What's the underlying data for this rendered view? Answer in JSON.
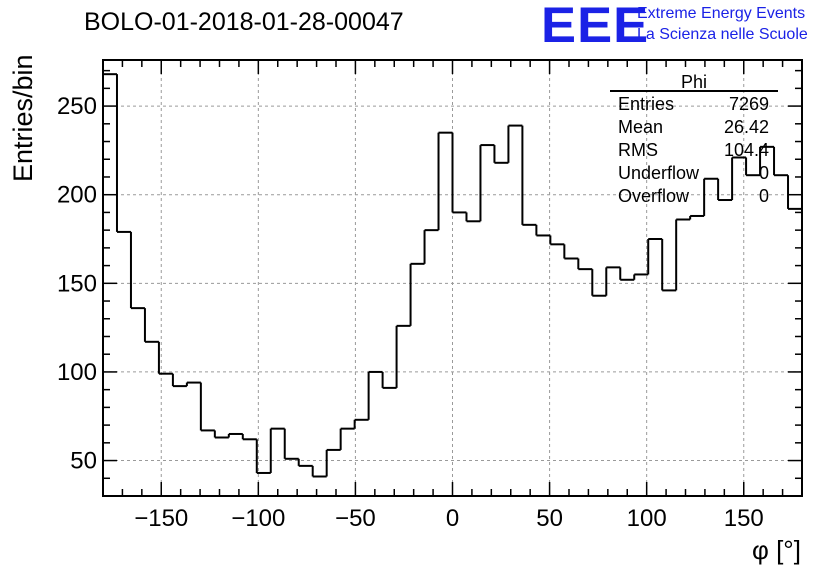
{
  "title": "BOLO-01-2018-01-28-00047",
  "logo": {
    "mark": "EEE",
    "line1": "Extreme Energy Events",
    "line2": "La Scienza nelle Scuole",
    "color": "#1b22e6"
  },
  "chart_data": {
    "type": "bar",
    "style": "step-histogram",
    "xlabel": "φ [°]",
    "ylabel": "Entries/bin",
    "xlim": [
      -180,
      180
    ],
    "ylim": [
      30,
      276
    ],
    "xticks": [
      -150,
      -100,
      -50,
      0,
      50,
      100,
      150
    ],
    "yticks": [
      50,
      100,
      150,
      200,
      250
    ],
    "grid": true,
    "bin_width": 7.2,
    "values": [
      268,
      179,
      136,
      117,
      99,
      92,
      94,
      67,
      63,
      65,
      62,
      43,
      68,
      51,
      47,
      41,
      56,
      68,
      73,
      100,
      91,
      126,
      161,
      180,
      235,
      190,
      185,
      228,
      218,
      239,
      183,
      177,
      172,
      164,
      158,
      143,
      159,
      152,
      155,
      175,
      146,
      186,
      188,
      209,
      197,
      221,
      211,
      227,
      211,
      192
    ],
    "stats_box": {
      "title": "Phi",
      "rows": [
        {
          "label": "Entries",
          "value": "7269"
        },
        {
          "label": "Mean",
          "value": "26.42"
        },
        {
          "label": "RMS",
          "value": "104.4"
        },
        {
          "label": "Underflow",
          "value": "0"
        },
        {
          "label": "Overflow",
          "value": "0"
        }
      ]
    }
  }
}
